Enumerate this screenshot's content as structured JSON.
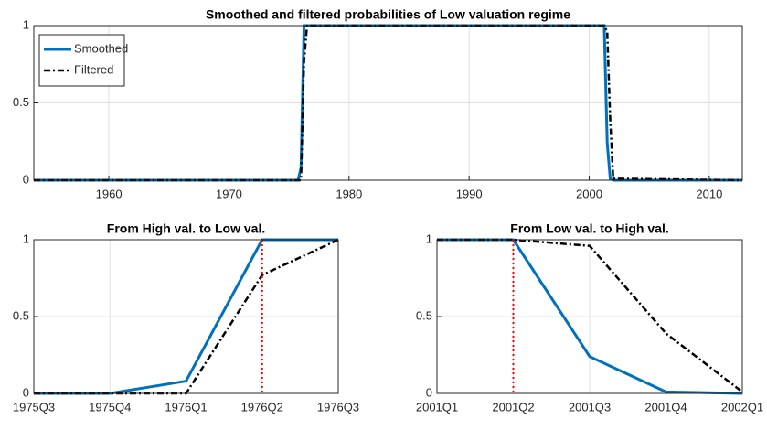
{
  "chart_data": [
    {
      "type": "line",
      "title": "Smoothed and filtered probabilities of Low valuation regime",
      "x": [
        1953.75,
        1975.5,
        1975.75,
        1976.0,
        1976.25,
        1976.5,
        2001.0,
        2001.25,
        2001.5,
        2001.75,
        2002.0,
        2012.75
      ],
      "series": [
        {
          "name": "Smoothed",
          "color": "#0072bd",
          "style": "solid",
          "values": [
            0,
            0,
            0,
            0.08,
            1,
            1,
            1,
            1,
            0.24,
            0.01,
            0,
            0
          ]
        },
        {
          "name": "Filtered",
          "color": "#000000",
          "style": "dashdot",
          "values": [
            0,
            0,
            0,
            0,
            0.77,
            1,
            1,
            1,
            0.96,
            0.39,
            0.01,
            0
          ]
        }
      ],
      "xlim": [
        1953.75,
        2012.75
      ],
      "xticks": [
        1960,
        1970,
        1980,
        1990,
        2000,
        2010
      ],
      "ylim": [
        0,
        1
      ],
      "yticks": [
        0,
        0.5,
        1
      ],
      "grid": true,
      "legend": "upper left"
    },
    {
      "type": "line",
      "title": "From High val. to Low val.",
      "categories": [
        "1975Q3",
        "1975Q4",
        "1976Q1",
        "1976Q2",
        "1976Q3"
      ],
      "series": [
        {
          "color": "#0072bd",
          "style": "solid",
          "values": [
            0,
            0,
            0.08,
            1,
            1
          ]
        },
        {
          "color": "#000000",
          "style": "dashdot",
          "values": [
            0,
            0,
            0,
            0.77,
            1
          ]
        }
      ],
      "ylim": [
        0,
        1
      ],
      "yticks": [
        0,
        0.5,
        1
      ],
      "grid": true,
      "vline": {
        "x": "1976Q2",
        "color": "#ff0000"
      }
    },
    {
      "type": "line",
      "title": "From Low val. to High val.",
      "categories": [
        "2001Q1",
        "2001Q2",
        "2001Q3",
        "2001Q4",
        "2002Q1"
      ],
      "series": [
        {
          "color": "#0072bd",
          "style": "solid",
          "values": [
            1,
            1,
            0.24,
            0.01,
            0
          ]
        },
        {
          "color": "#000000",
          "style": "dashdot",
          "values": [
            1,
            1,
            0.96,
            0.39,
            0.01
          ]
        }
      ],
      "ylim": [
        0,
        1
      ],
      "yticks": [
        0,
        0.5,
        1
      ],
      "grid": true,
      "vline": {
        "x": "2001Q2",
        "color": "#ff0000"
      }
    }
  ]
}
